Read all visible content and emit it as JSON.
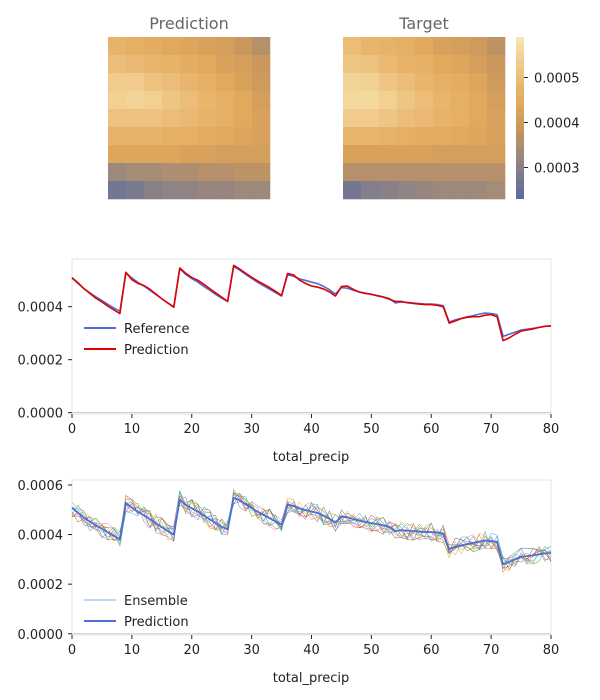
{
  "chart_data": [
    {
      "type": "heatmap",
      "title": "Prediction",
      "grid_rows": 9,
      "grid_cols": 9,
      "values": [
        [
          0.00047,
          0.00046,
          0.00045,
          0.00044,
          0.00043,
          0.00042,
          0.00041,
          0.00039,
          0.00036
        ],
        [
          0.0005,
          0.00049,
          0.00048,
          0.00047,
          0.00045,
          0.00044,
          0.00042,
          0.00041,
          0.00039
        ],
        [
          0.00053,
          0.00053,
          0.00051,
          0.0005,
          0.00048,
          0.00046,
          0.00044,
          0.00042,
          0.0004
        ],
        [
          0.00054,
          0.00055,
          0.00054,
          0.00052,
          0.0005,
          0.00048,
          0.00046,
          0.00044,
          0.00041
        ],
        [
          0.00051,
          0.00051,
          0.00051,
          0.0005,
          0.00049,
          0.00047,
          0.00046,
          0.00044,
          0.00042
        ],
        [
          0.00047,
          0.00047,
          0.00047,
          0.00046,
          0.00046,
          0.00045,
          0.00044,
          0.00043,
          0.00042
        ],
        [
          0.00043,
          0.00043,
          0.00043,
          0.00043,
          0.00042,
          0.00042,
          0.00041,
          0.00041,
          0.00041
        ],
        [
          0.00033,
          0.00034,
          0.00034,
          0.00035,
          0.00035,
          0.00036,
          0.00036,
          0.00037,
          0.00037
        ],
        [
          0.00027,
          0.00028,
          0.0003,
          0.00031,
          0.00031,
          0.00032,
          0.00032,
          0.00033,
          0.00033
        ]
      ]
    },
    {
      "type": "heatmap",
      "title": "Target",
      "grid_rows": 9,
      "grid_cols": 9,
      "values": [
        [
          0.0005,
          0.00048,
          0.00047,
          0.00046,
          0.00044,
          0.00042,
          0.00041,
          0.0004,
          0.00037
        ],
        [
          0.00052,
          0.00051,
          0.00049,
          0.00047,
          0.00046,
          0.00044,
          0.00043,
          0.00041,
          0.00039
        ],
        [
          0.00055,
          0.00054,
          0.00052,
          0.0005,
          0.00048,
          0.00046,
          0.00045,
          0.00043,
          0.0004
        ],
        [
          0.00056,
          0.00056,
          0.00054,
          0.00052,
          0.0005,
          0.00048,
          0.00046,
          0.00044,
          0.00041
        ],
        [
          0.00053,
          0.00053,
          0.00052,
          0.0005,
          0.00049,
          0.00047,
          0.00046,
          0.00044,
          0.00042
        ],
        [
          0.00048,
          0.00048,
          0.00047,
          0.00046,
          0.00045,
          0.00045,
          0.00044,
          0.00043,
          0.00042
        ],
        [
          0.00042,
          0.00042,
          0.00042,
          0.00042,
          0.00042,
          0.00041,
          0.00041,
          0.00041,
          0.00041
        ],
        [
          0.00036,
          0.00036,
          0.00036,
          0.00036,
          0.00036,
          0.00036,
          0.00036,
          0.00036,
          0.00036
        ],
        [
          0.00027,
          0.00029,
          0.0003,
          0.00031,
          0.00032,
          0.00033,
          0.00033,
          0.00033,
          0.00034
        ]
      ],
      "colorbar": {
        "ticks": [
          "0.0005",
          "0.0004",
          "0.0003"
        ],
        "tick_values": [
          0.0005,
          0.0004,
          0.0003
        ],
        "range": [
          0.00023,
          0.00059
        ],
        "colors": [
          "#5a6a9a",
          "#7c7b8e",
          "#9f8a7a",
          "#c8955c",
          "#e0a85c",
          "#eab770",
          "#f1cf90",
          "#f7e6b2"
        ]
      }
    },
    {
      "type": "line",
      "xlabel": "total_precip",
      "ylabel": "",
      "xlim": [
        0,
        80
      ],
      "ylim": [
        -5e-06,
        0.00058
      ],
      "x_ticks": [
        "0",
        "10",
        "20",
        "30",
        "40",
        "50",
        "60",
        "70",
        "80"
      ],
      "y_ticks": [
        "0.0000",
        "0.0002",
        "0.0004"
      ],
      "legend": "lower-left",
      "series": [
        {
          "name": "Reference",
          "color": "#4a6fd6",
          "x": [
            0,
            1,
            2,
            3,
            4,
            5,
            6,
            7,
            8,
            9,
            10,
            11,
            12,
            13,
            14,
            15,
            16,
            17,
            18,
            19,
            20,
            21,
            22,
            23,
            24,
            25,
            26,
            27,
            28,
            29,
            30,
            31,
            32,
            33,
            34,
            35,
            36,
            37,
            38,
            39,
            40,
            41,
            42,
            43,
            44,
            45,
            46,
            47,
            48,
            49,
            50,
            51,
            52,
            53,
            54,
            55,
            56,
            57,
            58,
            59,
            60,
            61,
            62,
            63,
            64,
            65,
            66,
            67,
            68,
            69,
            70,
            71,
            72,
            73,
            74,
            75,
            76,
            77,
            78,
            79,
            80
          ],
          "values": [
            0.000508,
            0.000488,
            0.000468,
            0.000452,
            0.000437,
            0.000423,
            0.000409,
            0.000395,
            0.000383,
            0.000528,
            0.000508,
            0.000492,
            0.000478,
            0.000462,
            0.000446,
            0.00043,
            0.000414,
            0.0004,
            0.000543,
            0.000522,
            0.000506,
            0.000493,
            0.000477,
            0.000462,
            0.000446,
            0.000432,
            0.00042,
            0.000552,
            0.000538,
            0.000522,
            0.000507,
            0.000492,
            0.000479,
            0.000466,
            0.000453,
            0.00044,
            0.000521,
            0.000515,
            0.000505,
            0.000499,
            0.000493,
            0.000487,
            0.000477,
            0.000464,
            0.000448,
            0.000472,
            0.00047,
            0.000462,
            0.000456,
            0.000451,
            0.000446,
            0.000442,
            0.000437,
            0.000431,
            0.000414,
            0.000418,
            0.000416,
            0.000414,
            0.000412,
            0.00041,
            0.00041,
            0.000408,
            0.000404,
            0.000342,
            0.00035,
            0.000356,
            0.000362,
            0.000366,
            0.000372,
            0.000376,
            0.000374,
            0.00037,
            0.000288,
            0.000296,
            0.000304,
            0.000312,
            0.000315,
            0.000318,
            0.000322,
            0.000326,
            0.000328
          ]
        },
        {
          "name": "Prediction",
          "color": "#e00000",
          "x": [
            0,
            1,
            2,
            3,
            4,
            5,
            6,
            7,
            8,
            9,
            10,
            11,
            12,
            13,
            14,
            15,
            16,
            17,
            18,
            19,
            20,
            21,
            22,
            23,
            24,
            25,
            26,
            27,
            28,
            29,
            30,
            31,
            32,
            33,
            34,
            35,
            36,
            37,
            38,
            39,
            40,
            41,
            42,
            43,
            44,
            45,
            46,
            47,
            48,
            49,
            50,
            51,
            52,
            53,
            54,
            55,
            56,
            57,
            58,
            59,
            60,
            61,
            62,
            63,
            64,
            65,
            66,
            67,
            68,
            69,
            70,
            71,
            72,
            73,
            74,
            75,
            76,
            77,
            78,
            79,
            80
          ],
          "values": [
            0.00051,
            0.00049,
            0.000468,
            0.00045,
            0.000432,
            0.000418,
            0.000402,
            0.000388,
            0.000374,
            0.00053,
            0.000502,
            0.000488,
            0.00048,
            0.000466,
            0.000448,
            0.00043,
            0.000414,
            0.000398,
            0.000546,
            0.000526,
            0.00051,
            0.0005,
            0.000485,
            0.000468,
            0.000452,
            0.000436,
            0.00042,
            0.000556,
            0.000542,
            0.000526,
            0.000511,
            0.000497,
            0.000485,
            0.000472,
            0.000458,
            0.000442,
            0.000525,
            0.00052,
            0.0005,
            0.000488,
            0.000478,
            0.000474,
            0.000467,
            0.000456,
            0.00044,
            0.000476,
            0.000478,
            0.000465,
            0.000455,
            0.00045,
            0.000447,
            0.000441,
            0.000436,
            0.000428,
            0.00042,
            0.00042,
            0.000415,
            0.000412,
            0.00041,
            0.000408,
            0.000408,
            0.000405,
            0.0004,
            0.000338,
            0.000346,
            0.000355,
            0.00036,
            0.000362,
            0.000362,
            0.000368,
            0.00037,
            0.000362,
            0.000272,
            0.000282,
            0.000296,
            0.000308,
            0.000312,
            0.000316,
            0.000322,
            0.000326,
            0.000328
          ]
        }
      ]
    },
    {
      "type": "line",
      "xlabel": "total_precip",
      "ylabel": "",
      "xlim": [
        0,
        80
      ],
      "ylim": [
        -5e-06,
        0.00062
      ],
      "x_ticks": [
        "0",
        "10",
        "20",
        "30",
        "40",
        "50",
        "60",
        "70",
        "80"
      ],
      "y_ticks": [
        "0.0000",
        "0.0002",
        "0.0004",
        "0.0006"
      ],
      "legend": "lower-left",
      "series": [
        {
          "name": "Ensemble",
          "color": "#5b8fd8",
          "member_count": 10,
          "member_colors": [
            "#1f77b4",
            "#ff7f0e",
            "#2ca02c",
            "#d62728",
            "#9467bd",
            "#8c564b",
            "#e377c2",
            "#7f7f7f",
            "#bcbd22",
            "#17becf"
          ]
        },
        {
          "name": "Prediction",
          "color": "#4a6fd6",
          "x": [
            0,
            1,
            2,
            3,
            4,
            5,
            6,
            7,
            8,
            9,
            10,
            11,
            12,
            13,
            14,
            15,
            16,
            17,
            18,
            19,
            20,
            21,
            22,
            23,
            24,
            25,
            26,
            27,
            28,
            29,
            30,
            31,
            32,
            33,
            34,
            35,
            36,
            37,
            38,
            39,
            40,
            41,
            42,
            43,
            44,
            45,
            46,
            47,
            48,
            49,
            50,
            51,
            52,
            53,
            54,
            55,
            56,
            57,
            58,
            59,
            60,
            61,
            62,
            63,
            64,
            65,
            66,
            67,
            68,
            69,
            70,
            71,
            72,
            73,
            74,
            75,
            76,
            77,
            78,
            79,
            80
          ],
          "values": [
            0.000508,
            0.000488,
            0.000468,
            0.000452,
            0.000437,
            0.000423,
            0.000409,
            0.000395,
            0.00038,
            0.000528,
            0.000508,
            0.000492,
            0.000478,
            0.000462,
            0.000446,
            0.00043,
            0.000414,
            0.0004,
            0.00054,
            0.00052,
            0.000506,
            0.000493,
            0.000477,
            0.000462,
            0.000446,
            0.000432,
            0.00042,
            0.000548,
            0.000538,
            0.000522,
            0.000507,
            0.000492,
            0.000479,
            0.000466,
            0.000453,
            0.00044,
            0.000521,
            0.000515,
            0.000505,
            0.000499,
            0.000493,
            0.000487,
            0.000477,
            0.000464,
            0.000448,
            0.000472,
            0.00047,
            0.000462,
            0.000456,
            0.000451,
            0.000446,
            0.000442,
            0.000437,
            0.000431,
            0.000414,
            0.000418,
            0.000416,
            0.000414,
            0.000412,
            0.00041,
            0.00041,
            0.000408,
            0.000404,
            0.000342,
            0.00035,
            0.000356,
            0.000362,
            0.000366,
            0.000372,
            0.000376,
            0.000374,
            0.00037,
            0.00028,
            0.00029,
            0.0003,
            0.00031,
            0.000313,
            0.000316,
            0.00032,
            0.000324,
            0.000326
          ]
        }
      ]
    }
  ]
}
